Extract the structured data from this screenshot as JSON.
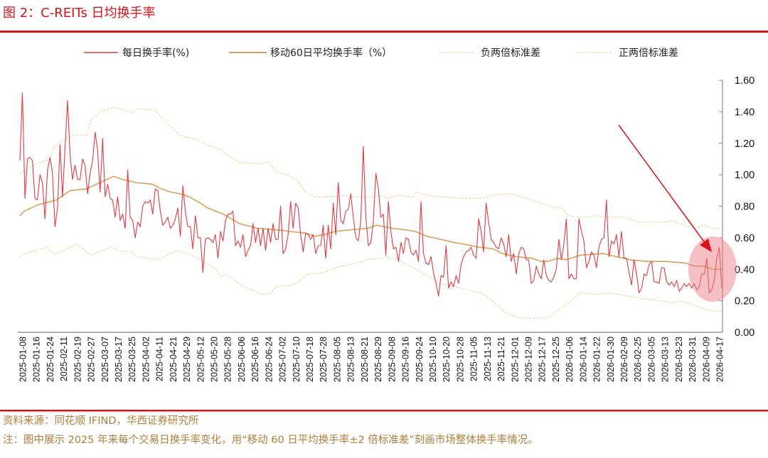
{
  "header": {
    "title": "图 2：C-REITs 日均换手率"
  },
  "footer": {
    "source": "资料来源：同花顺 IFIND，华西证券研究所",
    "note": "注：图中展示 2025 年来每个交易日换手率变化，用“移动 60 日平均换手率±2 倍标准差”刻画市场整体换手率情况。"
  },
  "colors": {
    "accent": "#d7141a",
    "daily": "#e03a44",
    "ma": "#d4a25e",
    "band": "#f0c993",
    "highlight": "#f08a93"
  },
  "chart_data": {
    "type": "line",
    "title": "C-REITs 日均换手率",
    "ylabel": "%",
    "ylim": [
      0,
      1.6
    ],
    "yticks": [
      0,
      0.2,
      0.4,
      0.6,
      0.8,
      1.0,
      1.2,
      1.4,
      1.6
    ],
    "y_axis_position": "right",
    "x_domain_trading_days": [
      0,
      307
    ],
    "legend_position": "top",
    "legend": [
      "每日换手率(%)",
      "移动60日平均换手率（%）",
      "负两倍标准差",
      "正两倍标准差"
    ],
    "xticks": [
      "2025-01-08",
      "2025-01-16",
      "2025-01-24",
      "2025-02-11",
      "2025-02-19",
      "2025-02-27",
      "2025-03-07",
      "2025-03-17",
      "2025-03-25",
      "2025-04-02",
      "2025-04-11",
      "2025-04-21",
      "2025-04-29",
      "2025-05-12",
      "2025-05-20",
      "2025-05-28",
      "2025-06-06",
      "2025-06-16",
      "2025-06-24",
      "2025-07-02",
      "2025-07-10",
      "2025-07-18",
      "2025-07-28",
      "2025-08-05",
      "2025-08-13",
      "2025-08-21",
      "2025-08-29",
      "2025-09-08",
      "2025-09-16",
      "2025-09-24",
      "2025-10-10",
      "2025-10-20",
      "2025-10-28",
      "2025-11-05",
      "2025-11-13",
      "2025-11-21",
      "2025-12-01",
      "2025-12-09",
      "2025-12-17",
      "2025-12-25",
      "2026-01-06",
      "2026-01-14",
      "2026-01-22",
      "2026-01-30",
      "2026-02-09",
      "2026-02-25",
      "2026-03-05",
      "2026-03-13",
      "2026-03-23",
      "2026-03-31",
      "2026-04-09",
      "2026-04-17"
    ],
    "series": [
      {
        "name": "每日换手率(%)",
        "style": "solid-thin",
        "values": [
          1.09,
          1.52,
          0.85,
          1.1,
          1.11,
          1.09,
          0.85,
          0.84,
          1.0,
          0.95,
          0.72,
          1.03,
          1.11,
          1.01,
          0.67,
          0.79,
          1.19,
          0.86,
          1.16,
          1.47,
          1.13,
          0.97,
          1.06,
          0.97,
          0.97,
          1.1,
          1.06,
          0.88,
          1.01,
          1.09,
          1.27,
          1.15,
          0.89,
          1.23,
          0.86,
          0.94,
          0.85,
          0.84,
          0.73,
          0.86,
          0.71,
          0.75,
          0.66,
          1.03,
          0.73,
          0.71,
          0.6,
          0.7,
          0.67,
          0.8,
          0.83,
          0.82,
          0.84,
          0.75,
          0.91,
          0.9,
          0.77,
          0.68,
          0.7,
          0.73,
          0.66,
          0.68,
          0.72,
          0.79,
          0.61,
          0.93,
          0.77,
          0.67,
          0.67,
          0.53,
          0.74,
          0.6,
          0.6,
          0.38,
          0.59,
          0.6,
          0.59,
          0.57,
          0.62,
          0.47,
          0.64,
          0.58,
          0.71,
          0.75,
          0.75,
          0.77,
          0.55,
          0.58,
          0.54,
          0.62,
          0.48,
          0.52,
          0.55,
          0.69,
          0.57,
          0.66,
          0.55,
          0.66,
          0.52,
          0.66,
          0.57,
          0.69,
          0.59,
          0.59,
          0.8,
          0.5,
          0.53,
          0.62,
          0.83,
          0.66,
          0.82,
          0.79,
          0.62,
          0.51,
          0.63,
          0.62,
          0.59,
          0.62,
          0.5,
          0.55,
          0.55,
          0.68,
          0.47,
          0.68,
          0.53,
          0.82,
          0.62,
          0.95,
          0.71,
          0.69,
          0.77,
          0.78,
          0.88,
          0.73,
          0.6,
          0.58,
          0.71,
          1.18,
          0.73,
          0.55,
          0.57,
          0.7,
          1.01,
          0.91,
          0.73,
          0.75,
          0.49,
          0.83,
          0.64,
          0.53,
          0.54,
          0.45,
          0.57,
          0.5,
          0.6,
          0.59,
          0.51,
          0.49,
          0.52,
          0.45,
          0.83,
          0.5,
          0.44,
          0.43,
          0.48,
          0.38,
          0.31,
          0.23,
          0.36,
          0.35,
          0.55,
          0.28,
          0.32,
          0.29,
          0.36,
          0.31,
          0.43,
          0.48,
          0.51,
          0.52,
          0.54,
          0.49,
          0.47,
          0.72,
          0.64,
          0.51,
          0.82,
          0.7,
          0.59,
          0.57,
          0.54,
          0.53,
          0.6,
          0.56,
          0.48,
          0.62,
          0.45,
          0.5,
          0.37,
          0.5,
          0.54,
          0.53,
          0.46,
          0.46,
          0.31,
          0.33,
          0.42,
          0.37,
          0.34,
          0.46,
          0.36,
          0.33,
          0.32,
          0.35,
          0.4,
          0.59,
          0.46,
          0.56,
          0.72,
          0.34,
          0.37,
          0.34,
          0.34,
          0.72,
          0.64,
          0.58,
          0.41,
          0.45,
          0.51,
          0.49,
          0.41,
          0.54,
          0.59,
          0.6,
          0.84,
          0.48,
          0.58,
          0.56,
          0.62,
          0.48,
          0.64,
          0.47,
          0.47,
          0.38,
          0.3,
          0.46,
          0.37,
          0.25,
          0.28,
          0.37,
          0.36,
          0.43,
          0.45,
          0.32,
          0.32,
          0.31,
          0.41,
          0.41,
          0.32,
          0.3,
          0.32,
          0.29,
          0.33,
          0.26,
          0.28,
          0.31,
          0.29,
          0.31,
          0.28,
          0.31,
          0.27,
          0.29,
          0.37,
          0.37,
          0.47,
          0.25,
          0.27,
          0.33,
          0.47,
          0.54,
          0.28
        ]
      },
      {
        "name": "移动60日平均换手率（%）",
        "style": "solid-thick",
        "points": [
          [
            0,
            0.74
          ],
          [
            2,
            0.77
          ],
          [
            8,
            0.81
          ],
          [
            16,
            0.84
          ],
          [
            22,
            0.9
          ],
          [
            29,
            0.91
          ],
          [
            35,
            0.95
          ],
          [
            41,
            0.99
          ],
          [
            45,
            0.97
          ],
          [
            51,
            0.95
          ],
          [
            58,
            0.94
          ],
          [
            62,
            0.91
          ],
          [
            66,
            0.89
          ],
          [
            70,
            0.88
          ],
          [
            74,
            0.86
          ],
          [
            79,
            0.82
          ],
          [
            82,
            0.79
          ],
          [
            89,
            0.75
          ],
          [
            96,
            0.69
          ],
          [
            104,
            0.66
          ],
          [
            113,
            0.65
          ],
          [
            118,
            0.64
          ],
          [
            125,
            0.63
          ],
          [
            129,
            0.61
          ],
          [
            133,
            0.62
          ],
          [
            138,
            0.64
          ],
          [
            144,
            0.65
          ],
          [
            152,
            0.66
          ],
          [
            156,
            0.68
          ],
          [
            163,
            0.66
          ],
          [
            169,
            0.65
          ],
          [
            173,
            0.64
          ],
          [
            178,
            0.61
          ],
          [
            184,
            0.59
          ],
          [
            190,
            0.57
          ],
          [
            194,
            0.56
          ],
          [
            201,
            0.54
          ],
          [
            207,
            0.53
          ],
          [
            211,
            0.5
          ],
          [
            217,
            0.48
          ],
          [
            224,
            0.47
          ],
          [
            228,
            0.45
          ],
          [
            231,
            0.45
          ],
          [
            235,
            0.47
          ],
          [
            239,
            0.46
          ],
          [
            245,
            0.49
          ],
          [
            255,
            0.5
          ],
          [
            261,
            0.48
          ],
          [
            267,
            0.46
          ],
          [
            274,
            0.45
          ],
          [
            283,
            0.45
          ],
          [
            291,
            0.44
          ],
          [
            295,
            0.42
          ],
          [
            299,
            0.42
          ],
          [
            303,
            0.4
          ],
          [
            307,
            0.4
          ]
        ]
      },
      {
        "name": "负两倍标准差",
        "style": "dashed",
        "points": [
          [
            0,
            0.48
          ],
          [
            2,
            0.5
          ],
          [
            12,
            0.54
          ],
          [
            15,
            0.49
          ],
          [
            25,
            0.56
          ],
          [
            31,
            0.49
          ],
          [
            40,
            0.54
          ],
          [
            45,
            0.51
          ],
          [
            48,
            0.52
          ],
          [
            51,
            0.48
          ],
          [
            60,
            0.46
          ],
          [
            69,
            0.52
          ],
          [
            78,
            0.47
          ],
          [
            86,
            0.4
          ],
          [
            88,
            0.35
          ],
          [
            90,
            0.37
          ],
          [
            98,
            0.29
          ],
          [
            106,
            0.24
          ],
          [
            109,
            0.24
          ],
          [
            112,
            0.29
          ],
          [
            119,
            0.3
          ],
          [
            121,
            0.31
          ],
          [
            126,
            0.37
          ],
          [
            133,
            0.38
          ],
          [
            138,
            0.41
          ],
          [
            144,
            0.43
          ],
          [
            152,
            0.46
          ],
          [
            157,
            0.47
          ],
          [
            160,
            0.48
          ],
          [
            165,
            0.46
          ],
          [
            172,
            0.41
          ],
          [
            178,
            0.36
          ],
          [
            184,
            0.31
          ],
          [
            193,
            0.28
          ],
          [
            201,
            0.25
          ],
          [
            205,
            0.22
          ],
          [
            209,
            0.17
          ],
          [
            213,
            0.12
          ],
          [
            219,
            0.09
          ],
          [
            225,
            0.09
          ],
          [
            231,
            0.09
          ],
          [
            234,
            0.13
          ],
          [
            239,
            0.17
          ],
          [
            245,
            0.25
          ],
          [
            253,
            0.24
          ],
          [
            258,
            0.25
          ],
          [
            266,
            0.23
          ],
          [
            274,
            0.21
          ],
          [
            280,
            0.2
          ],
          [
            285,
            0.19
          ],
          [
            289,
            0.2
          ],
          [
            295,
            0.17
          ],
          [
            301,
            0.14
          ],
          [
            307,
            0.13
          ]
        ]
      },
      {
        "name": "正两倍标准差",
        "style": "dashed",
        "points": [
          [
            0,
            1.01
          ],
          [
            6,
            1.06
          ],
          [
            13,
            1.1
          ],
          [
            15,
            1.18
          ],
          [
            22,
            1.25
          ],
          [
            29,
            1.25
          ],
          [
            31,
            1.34
          ],
          [
            36,
            1.41
          ],
          [
            42,
            1.43
          ],
          [
            49,
            1.39
          ],
          [
            51,
            1.42
          ],
          [
            59,
            1.41
          ],
          [
            64,
            1.33
          ],
          [
            70,
            1.25
          ],
          [
            78,
            1.22
          ],
          [
            82,
            1.19
          ],
          [
            88,
            1.16
          ],
          [
            90,
            1.13
          ],
          [
            96,
            1.08
          ],
          [
            104,
            1.07
          ],
          [
            109,
            1.08
          ],
          [
            112,
            1.02
          ],
          [
            117,
            1.0
          ],
          [
            121,
            0.97
          ],
          [
            125,
            0.89
          ],
          [
            129,
            0.86
          ],
          [
            135,
            0.86
          ],
          [
            142,
            0.87
          ],
          [
            148,
            0.86
          ],
          [
            153,
            0.86
          ],
          [
            157,
            0.87
          ],
          [
            161,
            0.85
          ],
          [
            165,
            0.87
          ],
          [
            172,
            0.86
          ],
          [
            173,
            0.89
          ],
          [
            178,
            0.87
          ],
          [
            184,
            0.86
          ],
          [
            193,
            0.85
          ],
          [
            203,
            0.85
          ],
          [
            207,
            0.87
          ],
          [
            215,
            0.88
          ],
          [
            221,
            0.85
          ],
          [
            228,
            0.82
          ],
          [
            232,
            0.8
          ],
          [
            234,
            0.79
          ],
          [
            237,
            0.79
          ],
          [
            240,
            0.74
          ],
          [
            246,
            0.73
          ],
          [
            253,
            0.74
          ],
          [
            257,
            0.73
          ],
          [
            264,
            0.73
          ],
          [
            270,
            0.7
          ],
          [
            283,
            0.7
          ],
          [
            285,
            0.71
          ],
          [
            289,
            0.69
          ],
          [
            295,
            0.66
          ],
          [
            299,
            0.68
          ],
          [
            303,
            0.66
          ],
          [
            307,
            0.66
          ]
        ]
      }
    ],
    "annotation": {
      "type": "highlight-ellipse-with-arrow",
      "x_range_trading_days": [
        295,
        307
      ]
    }
  }
}
